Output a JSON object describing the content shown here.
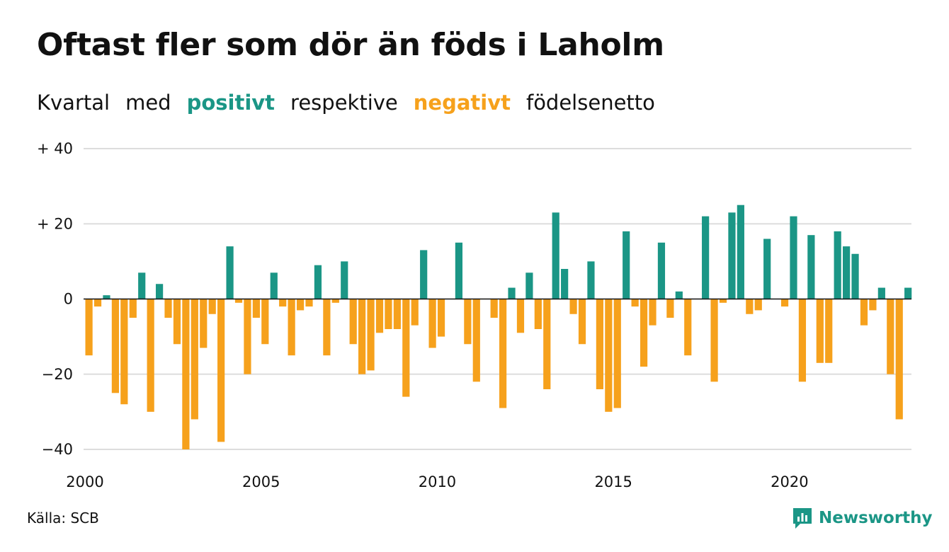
{
  "chart_data": {
    "type": "bar",
    "title": "Oftast fler som dör än föds i Laholm",
    "subtitle_parts": [
      "Kvartal",
      "med",
      "positivt",
      "respektive",
      "negativt",
      "födelsenetto"
    ],
    "xlabel": "",
    "ylabel": "",
    "ylim": [
      -40,
      40
    ],
    "y_ticks": [
      {
        "value": 40,
        "label": "+ 40"
      },
      {
        "value": 20,
        "label": "+ 20"
      },
      {
        "value": 0,
        "label": "0"
      },
      {
        "value": -20,
        "label": "−20"
      },
      {
        "value": -40,
        "label": "−40"
      }
    ],
    "x_ticks": [
      "2000",
      "2005",
      "2010",
      "2015",
      "2020"
    ],
    "x_start_year": 2000,
    "periods_per_year": 4,
    "grid": true,
    "colors": {
      "positive": "#1b9686",
      "negative": "#f6a11c"
    },
    "series": [
      {
        "values": [
          -15,
          -2,
          1,
          -25,
          -28,
          -5,
          7,
          -30,
          4,
          -5,
          -12,
          -40,
          -32,
          -13,
          -4,
          -38,
          14,
          -1,
          -20,
          -5,
          -12,
          7,
          -2,
          -15,
          -3,
          -2,
          9,
          -15,
          -1,
          10,
          -12,
          -20,
          -19,
          -9,
          -8,
          -8,
          -26,
          -7,
          13,
          -13,
          -10,
          0,
          15,
          -12,
          -22,
          0,
          -5,
          -29,
          3,
          -9,
          7,
          -8,
          -24,
          23,
          8,
          -4,
          -12,
          10,
          -24,
          -30,
          -29,
          18,
          -2,
          -18,
          -7,
          15,
          -5,
          2,
          -15,
          0,
          22,
          -22,
          -1,
          23,
          25,
          -4,
          -3,
          16,
          0,
          -2,
          22,
          -22,
          17,
          -17,
          -17,
          18,
          14,
          12,
          -7,
          -3,
          3,
          -20,
          -32,
          3
        ]
      }
    ]
  },
  "footer": {
    "source": "Källa: SCB",
    "brand": "Newsworthy"
  }
}
